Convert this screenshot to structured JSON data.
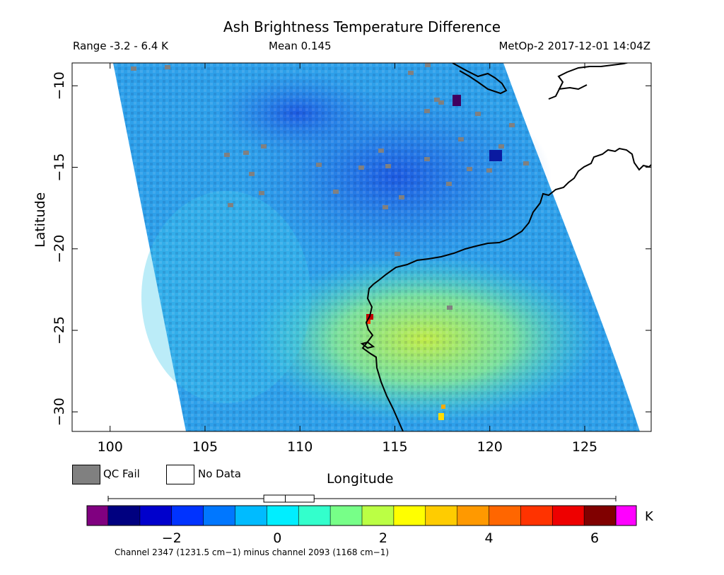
{
  "header": {
    "title": "Ash Brightness Temperature Difference",
    "range": "Range -3.2 - 6.4 K",
    "mean": "Mean 0.145",
    "satellite": "MetOp-2 2017-12-01 14:04Z"
  },
  "axes": {
    "xlabel": "Longitude",
    "ylabel": "Latitude",
    "xlim": [
      98,
      128.5
    ],
    "ylim": [
      -31.2,
      -8.6
    ],
    "xticks": [
      100,
      105,
      110,
      115,
      120,
      125
    ],
    "yticks": [
      -10,
      -15,
      -20,
      -25,
      -30
    ]
  },
  "legend": {
    "qc_fail": "QC Fail",
    "no_data": "No Data",
    "qc_color": "#808080"
  },
  "colorbar": {
    "min": -3.2,
    "max": 6.4,
    "ticks": [
      -2,
      0,
      2,
      4,
      6
    ],
    "tick_labels": [
      "−2",
      "0",
      "2",
      "4",
      "6"
    ],
    "unit": "K",
    "under_color": "#800080",
    "over_color": "#ff00ff",
    "colors": [
      "#000080",
      "#0000cc",
      "#0033ff",
      "#0077ff",
      "#00bbff",
      "#00eeff",
      "#33ffcc",
      "#77ff88",
      "#bbff44",
      "#ffff00",
      "#ffcc00",
      "#ff9900",
      "#ff6600",
      "#ff3300",
      "#ee0000",
      "#800000"
    ]
  },
  "swath_box": {
    "min": -3.2,
    "q1": -0.15,
    "median": 0.15,
    "q3": 0.4,
    "max": 6.4
  },
  "footnote": "Channel 2347 (1231.5 cm−1) minus channel 2093 (1168 cm−1)"
}
